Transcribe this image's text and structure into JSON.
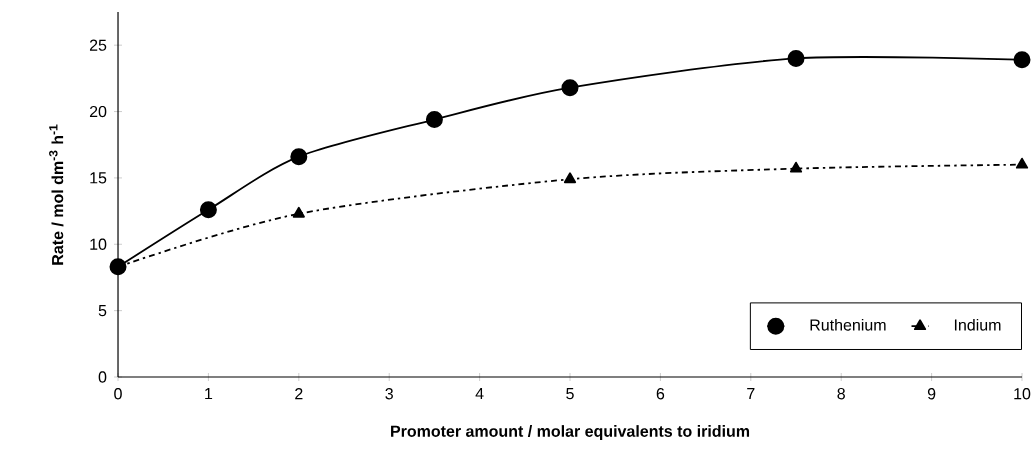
{
  "chart_data": {
    "type": "line",
    "xlabel": "Promoter amount / molar equivalents to iridium",
    "ylabel": "Rate / mol dm$^{-3}$ h$^{-1}$",
    "xlim": [
      0,
      10
    ],
    "xticks": [
      0,
      1,
      2,
      3,
      4,
      5,
      6,
      7,
      8,
      9,
      10
    ],
    "ylim": [
      0,
      27.5
    ],
    "yticks": [
      0,
      5,
      10,
      15,
      20,
      25
    ],
    "legend": "bottom right",
    "grid": false,
    "series": [
      {
        "name": "Ruthenium",
        "color": "#000000",
        "marker": "circle",
        "line_style": "solid",
        "x": [
          0,
          1,
          2,
          3.5,
          5,
          7.5,
          10
        ],
        "values": [
          8.3,
          12.6,
          16.6,
          19.4,
          21.8,
          24.0,
          23.9
        ]
      },
      {
        "name": "Indium",
        "color": "#000000",
        "marker": "triangle",
        "line_style": "dotted",
        "x": [
          0,
          2,
          5,
          7.5,
          10
        ],
        "values": [
          8.3,
          12.3,
          14.9,
          15.7,
          16.0
        ]
      }
    ]
  }
}
